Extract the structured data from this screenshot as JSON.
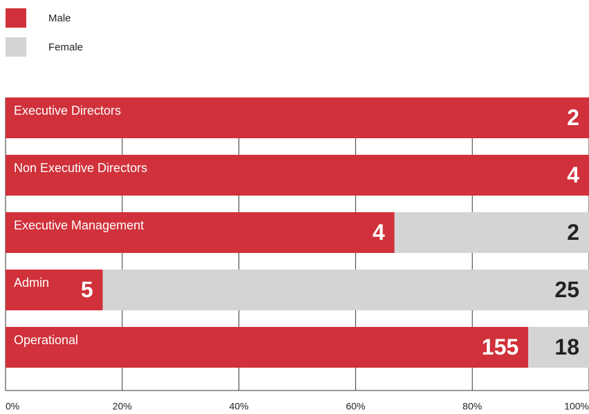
{
  "chart_data": {
    "type": "bar",
    "orientation": "horizontal",
    "stacking": "percent",
    "categories": [
      "Executive Directors",
      "Non Executive Directors",
      "Executive Management",
      "Admin",
      "Operational"
    ],
    "series": [
      {
        "name": "Male",
        "color": "#d0313a",
        "values": [
          2,
          4,
          4,
          5,
          155
        ]
      },
      {
        "name": "Female",
        "color": "#d4d4d4",
        "values": [
          0,
          0,
          2,
          25,
          18
        ]
      }
    ],
    "xlim": [
      0,
      100
    ],
    "xticks": [
      {
        "value": 0,
        "label": "0%"
      },
      {
        "value": 20,
        "label": "20%"
      },
      {
        "value": 40,
        "label": "40%"
      },
      {
        "value": 60,
        "label": "60%"
      },
      {
        "value": 80,
        "label": "80%"
      },
      {
        "value": 100,
        "label": "100%"
      }
    ],
    "grid": true,
    "legend": "top-left"
  }
}
